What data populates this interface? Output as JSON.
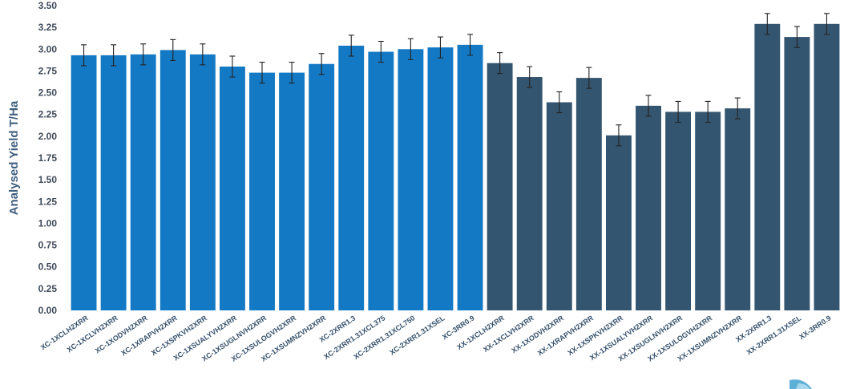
{
  "chart_data": {
    "type": "bar",
    "title": "",
    "xlabel": "",
    "ylabel": "Analysed Yield T/Ha",
    "ylim": [
      0,
      3.5
    ],
    "ytick_step": 0.25,
    "grid": false,
    "legend": "none",
    "colors": {
      "XC": "#1479c4",
      "XX": "#34556f",
      "error_bar": "#222222"
    },
    "categories": [
      "XC-1XCLH2XRR",
      "XC-1XCLVH2XRR",
      "XC-1XODVH2XRR",
      "XC-1XRAPVH2XRR",
      "XC-1XSPKVH2XRR",
      "XC-1XSUALYVH2XRR",
      "XC-1XSUGLNVH2XRR",
      "XC-1XSULOGVH2XRR",
      "XC-1XSUMNZVH2XRR",
      "XC-2XRR1.3",
      "XC-2XRR1.31XCL375",
      "XC-2XRR1.31XCL750",
      "XC-2XRR1.31XSEL",
      "XC-3RR0.9",
      "XX-1XCLH2XRR",
      "XX-1XCLVH2XRR",
      "XX-1XODVH2XRR",
      "XX-1XRAPVH2XRR",
      "XX-1XSPKVH2XRR",
      "XX-1XSUALYVH2XRR",
      "XX-1XSUGLNVH2XRR",
      "XX-1XSULOGVH2XRR",
      "XX-1XSUMNZVH2XRR",
      "XX-2XRR1.3",
      "XX-2XRR1.31XSEL",
      "XX-3RR0.9"
    ],
    "groups": [
      "XC",
      "XC",
      "XC",
      "XC",
      "XC",
      "XC",
      "XC",
      "XC",
      "XC",
      "XC",
      "XC",
      "XC",
      "XC",
      "XC",
      "XX",
      "XX",
      "XX",
      "XX",
      "XX",
      "XX",
      "XX",
      "XX",
      "XX",
      "XX",
      "XX",
      "XX"
    ],
    "values": [
      2.93,
      2.93,
      2.94,
      2.99,
      2.94,
      2.8,
      2.73,
      2.73,
      2.83,
      3.04,
      2.97,
      3.0,
      3.02,
      3.05,
      2.84,
      2.68,
      2.39,
      2.67,
      2.01,
      2.35,
      2.28,
      2.28,
      2.32,
      3.29,
      3.14,
      3.29
    ],
    "error": 0.12
  }
}
